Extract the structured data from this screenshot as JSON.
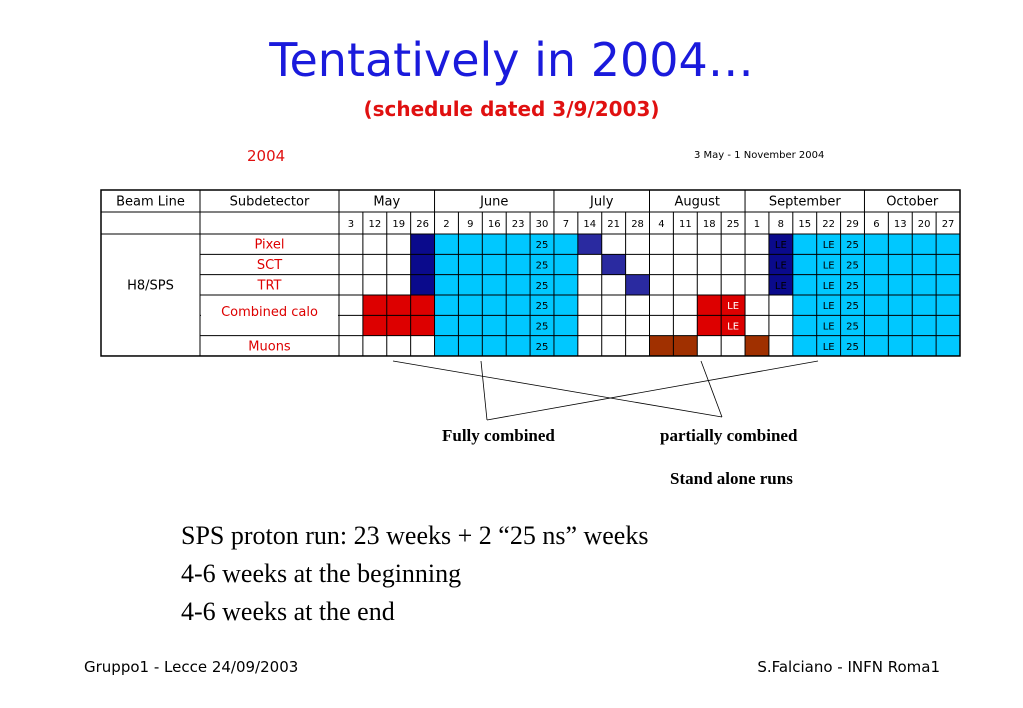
{
  "title": "Tentatively in 2004…",
  "subtitle": "(schedule dated 3/9/2003)",
  "schedule": {
    "year": "2004",
    "date_range": "3 May - 1 November 2004",
    "header_beam_line": "Beam Line",
    "header_subdetector": "Subdetector",
    "months": [
      {
        "name": "May",
        "span": 4
      },
      {
        "name": "June",
        "span": 5
      },
      {
        "name": "July",
        "span": 4
      },
      {
        "name": "August",
        "span": 4
      },
      {
        "name": "September",
        "span": 5
      },
      {
        "name": "October",
        "span": 4
      }
    ],
    "weeks": [
      "3",
      "12",
      "19",
      "26",
      "2",
      "9",
      "16",
      "23",
      "30",
      "7",
      "14",
      "21",
      "28",
      "4",
      "11",
      "18",
      "25",
      "1",
      "8",
      "15",
      "22",
      "29",
      "6",
      "13",
      "20",
      "27"
    ],
    "beam_line": "H8/SPS",
    "subdetectors": [
      {
        "name": "Pixel",
        "rows": 1
      },
      {
        "name": "SCT",
        "rows": 1
      },
      {
        "name": "TRT",
        "rows": 1
      },
      {
        "name": "Combined calo",
        "rows": 2
      },
      {
        "name": "Muons",
        "rows": 1
      }
    ],
    "legend_colors": {
      "W": "#ffffff",
      "C": "#00c8ff",
      "N": "#0a0a8c",
      "B": "#2a2aa0",
      "R": "#dd0000",
      "M": "#a03000"
    },
    "cells": [
      [
        "W",
        "W",
        "W",
        "N",
        "C",
        "C",
        "C",
        "C",
        "C",
        "C",
        "B",
        "W",
        "W",
        "W",
        "W",
        "W",
        "W",
        "W",
        "N",
        "C",
        "C",
        "C",
        "C",
        "C",
        "C",
        "C"
      ],
      [
        "W",
        "W",
        "W",
        "N",
        "C",
        "C",
        "C",
        "C",
        "C",
        "C",
        "W",
        "B",
        "W",
        "W",
        "W",
        "W",
        "W",
        "W",
        "N",
        "C",
        "C",
        "C",
        "C",
        "C",
        "C",
        "C"
      ],
      [
        "W",
        "W",
        "W",
        "N",
        "C",
        "C",
        "C",
        "C",
        "C",
        "C",
        "W",
        "W",
        "B",
        "W",
        "W",
        "W",
        "W",
        "W",
        "N",
        "C",
        "C",
        "C",
        "C",
        "C",
        "C",
        "C"
      ],
      [
        "W",
        "R",
        "R",
        "R",
        "C",
        "C",
        "C",
        "C",
        "C",
        "C",
        "W",
        "W",
        "W",
        "W",
        "W",
        "R",
        "R",
        "W",
        "W",
        "C",
        "C",
        "C",
        "C",
        "C",
        "C",
        "C"
      ],
      [
        "W",
        "R",
        "R",
        "R",
        "C",
        "C",
        "C",
        "C",
        "C",
        "C",
        "W",
        "W",
        "W",
        "W",
        "W",
        "R",
        "R",
        "W",
        "W",
        "C",
        "C",
        "C",
        "C",
        "C",
        "C",
        "C"
      ],
      [
        "W",
        "W",
        "W",
        "W",
        "C",
        "C",
        "C",
        "C",
        "C",
        "C",
        "W",
        "W",
        "W",
        "M",
        "M",
        "W",
        "W",
        "M",
        "W",
        "C",
        "C",
        "C",
        "C",
        "C",
        "C",
        "C"
      ]
    ],
    "cell_labels": [
      [
        "",
        "",
        "",
        "",
        "",
        "",
        "",
        "",
        "25",
        "",
        "",
        "",
        "",
        "",
        "",
        "",
        "",
        "",
        "LE",
        "",
        "LE",
        "25",
        "",
        "",
        "",
        ""
      ],
      [
        "",
        "",
        "",
        "",
        "",
        "",
        "",
        "",
        "25",
        "",
        "",
        "",
        "",
        "",
        "",
        "",
        "",
        "",
        "LE",
        "",
        "LE",
        "25",
        "",
        "",
        "",
        ""
      ],
      [
        "",
        "",
        "",
        "",
        "",
        "",
        "",
        "",
        "25",
        "",
        "",
        "",
        "",
        "",
        "",
        "",
        "",
        "",
        "LE",
        "",
        "LE",
        "25",
        "",
        "",
        "",
        ""
      ],
      [
        "",
        "",
        "",
        "",
        "",
        "",
        "",
        "",
        "25",
        "",
        "",
        "",
        "",
        "",
        "",
        "",
        "LE",
        "",
        "",
        "",
        "LE",
        "25",
        "",
        "",
        "",
        ""
      ],
      [
        "",
        "",
        "",
        "",
        "",
        "",
        "",
        "",
        "25",
        "",
        "",
        "",
        "",
        "",
        "",
        "",
        "LE",
        "",
        "",
        "",
        "LE",
        "25",
        "",
        "",
        "",
        ""
      ],
      [
        "",
        "",
        "",
        "",
        "",
        "",
        "",
        "",
        "25",
        "",
        "",
        "",
        "",
        "",
        "",
        "",
        "",
        "",
        "",
        "",
        "LE",
        "25",
        "",
        "",
        "",
        ""
      ]
    ]
  },
  "labels": {
    "fully_combined": "Fully combined",
    "partially_combined": "partially combined",
    "stand_alone": "Stand alone runs"
  },
  "notes": [
    "SPS proton run: 23 weeks + 2 “25 ns” weeks",
    "4-6 weeks at the beginning",
    "4-6 weeks at the end"
  ],
  "footer": {
    "left": "Gruppo1 - Lecce 24/09/2003",
    "right": "S.Falciano - INFN Roma1"
  }
}
